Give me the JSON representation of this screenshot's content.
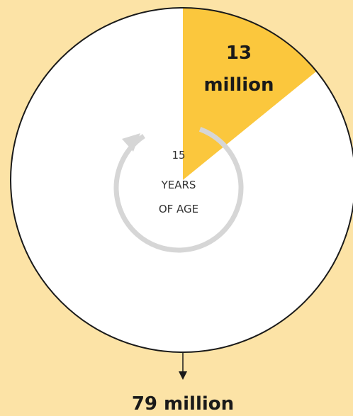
{
  "chart_data": {
    "type": "pie",
    "slices": [
      {
        "label_lines": [
          "13",
          "million"
        ],
        "value": 13,
        "color": "#FBC73D"
      },
      {
        "label_lines": [
          "79 million"
        ],
        "value": 79,
        "color": "#FFFFFF"
      }
    ],
    "center_label": {
      "lines": [
        "15",
        "YEARS",
        "OF AGE"
      ]
    },
    "outline_color": "#1A1A1A",
    "ring_color": "#D6D6D6",
    "background_color": "#FCE3A6"
  }
}
